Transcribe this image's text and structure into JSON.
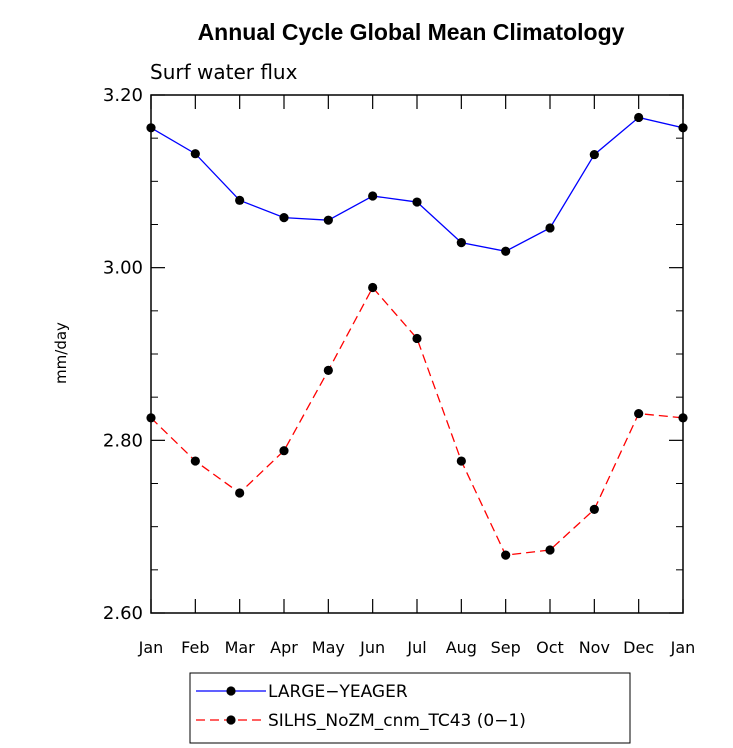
{
  "chart_data": {
    "type": "line",
    "title": "Annual Cycle Global Mean Climatology",
    "subtitle": "Surf water flux",
    "xlabel": "",
    "ylabel": "mm/day",
    "categories": [
      "Jan",
      "Feb",
      "Mar",
      "Apr",
      "May",
      "Jun",
      "Jul",
      "Aug",
      "Sep",
      "Oct",
      "Nov",
      "Dec",
      "Jan"
    ],
    "ylim": [
      2.6,
      3.2
    ],
    "yticks": [
      2.6,
      2.8,
      3.0,
      3.2
    ],
    "ytick_labels": [
      "2.60",
      "2.80",
      "3.00",
      "3.20"
    ],
    "y_minor_step": 0.05,
    "legend_position": "bottom",
    "series": [
      {
        "name": "LARGE−YEAGER",
        "color": "#0000ff",
        "dash": "solid",
        "values": [
          3.162,
          3.132,
          3.078,
          3.058,
          3.055,
          3.083,
          3.076,
          3.029,
          3.019,
          3.046,
          3.131,
          3.174,
          3.162
        ]
      },
      {
        "name": "SILHS_NoZM_cnm_TC43 (0−1)",
        "color": "#ff0000",
        "dash": "dashed",
        "values": [
          2.826,
          2.776,
          2.739,
          2.788,
          2.881,
          2.977,
          2.918,
          2.776,
          2.667,
          2.673,
          2.72,
          2.831,
          2.826
        ]
      }
    ]
  }
}
